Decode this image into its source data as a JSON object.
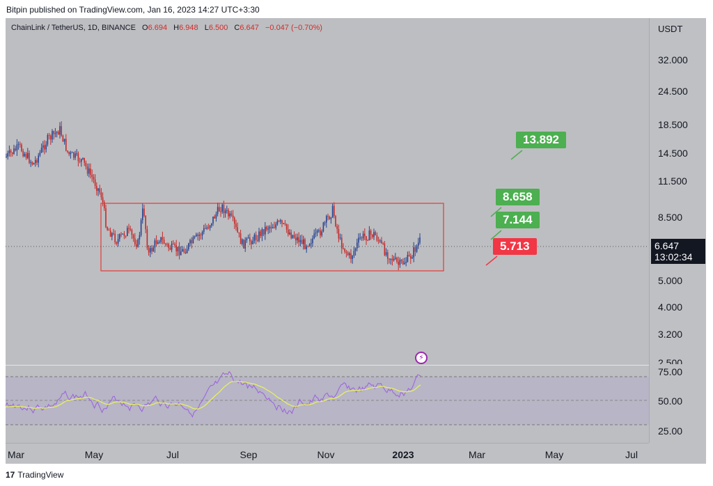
{
  "header": {
    "published": "Bitpin published on TradingView.com, Jan 16, 2023 14:27 UTC+3:30"
  },
  "legend": {
    "symbol": "ChainLink / TetherUS, 1D, BINANCE",
    "o_label": "O",
    "o_value": "6.694",
    "h_label": "H",
    "h_value": "6.948",
    "l_label": "L",
    "l_value": "6.500",
    "c_label": "C",
    "c_value": "6.647",
    "change": "−0.047 (−0.70%)"
  },
  "price_axis": {
    "unit": "USDT",
    "ticks": [
      "32.000",
      "24.500",
      "18.500",
      "14.500",
      "11.500",
      "8.500",
      "5.000",
      "4.000",
      "3.200",
      "2.500"
    ],
    "last_price": "6.647",
    "countdown": "13:02:34"
  },
  "rsi_axis": {
    "ticks": [
      "75.00",
      "50.00",
      "25.00"
    ]
  },
  "time_axis": {
    "labels": [
      "Mar",
      "May",
      "Jul",
      "Sep",
      "Nov",
      "2023",
      "Mar",
      "May",
      "Jul"
    ]
  },
  "targets": {
    "t1": "13.892",
    "t2": "8.658",
    "t3": "7.144",
    "stop": "5.713"
  },
  "footer": {
    "brand": "TradingView",
    "logo": "17"
  },
  "colors": {
    "up": "#4caf50",
    "down": "#f23645",
    "candle_up": "#26418f",
    "candle_down": "#c62828",
    "rsi_line": "#9c5fe0",
    "rsi_ma": "#e8f060",
    "range_box": "#e53935"
  },
  "icons": {
    "event": "lightning-icon"
  }
}
